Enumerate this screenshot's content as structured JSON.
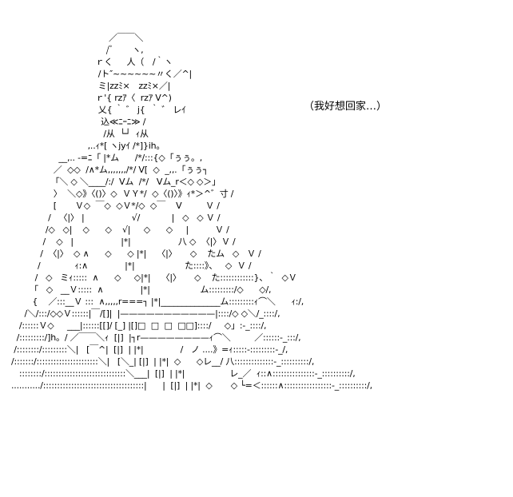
{
  "colors": {
    "background": "#ffffff",
    "ink": "#000000"
  },
  "caption": "（我好想回家…）",
  "art_lines": [
    "                                     ／￣￣＼",
    "                                    /ﾞ       ヽ,",
    "                                ｒく　  人（　/｀ヽ",
    "                                 /ト″~~~~~~〃く／^|",
    "                                 ミ|zzﾐ×　zzﾐ×／|",
    "                                ｒ'{ rzｱ〈  rzｱ V^)",
    "                                 乂{ ｀ ゛ j{  ｀ ゛ レｲ",
    "                                  込≪ﾆｰﾆ≫ /",
    "                                   /从  └┘  ｨ从",
    "                             ,..ｨ*[ ヽjyｲ /*]}ih。",
    "                  __,.. -=ﾆ「 |*ム      /*/:::{◇「ぅぅ。,",
    "                ／  ◇◇  /∧*ム,,,,,,,/*/ Ⅴ[  ◇  _,,.「ぅぅ┐",
    "               「＼ ◇ ＼____/:/  Ⅴム  /*/   Ⅴム_r＜◇ ◇＞」",
    "                〉  ＼◇》〈()〉◇  ＶＹ*/  ◇〈()〉》ｨ*＞^゛寸 /",
    "                [       Ｖ◇  ￣◇  ◇Ｖ*/◇  ◇￣    Ⅴ         Ｖ /",
    "              /   〈|〉 |                  √/            |   ◇   ◇ Ｖ /",
    "             /◇   ◇|    ◇      ◇    √|     ◇      ◇     |          Ｖ /",
    "            /    ◇   |                  |*|                  八 ◇  〈|〉Ｖ /",
    "           /  〈|〉  ◇ ∧      ◇      ◇ |*|    〈|〉     ◇    たム   ◇   Ｖ /",
    "          /             ｨ:∧              |*|                   た::::》、   ◇  Ｖ /",
    "         /   ◇   ミｨ:::::  ∧      ◇     ◇|*|    〈|〉     ◇    た::::::::::::}、｀  ◇Ｖ",
    "       「   ◇   __Ｖ:::::  ∧              |*|                   ム:::::::::/◇      ◇/,",
    "        {    ／:::__Ｖ :::  ∧,,,,,r===┐ |*|______________ム:::::::::ｨ⌒＼      ｨ:/,",
    "     /＼/:::/◇◇Ｖ::::::|￣/[]|  |———————————|::::/◇ ◇＼/_::::/,",
    "   /::::::Ｖ◇     ___|::::::[[]/ [_] |[]□  □  □  □□]::::/     ◇」:-_::::/,",
    "  /:::::::::/]h。/ ／￣￣＼ｨ  [|]  |┐r————————ｨ⌒＼         ／::::::-_:::/,",
    " /::::::::/:::::::::＼|   [￣^|  [|]  | |*|              /   ノ ....》=ｨ:::::-:::::::::-_/,",
    "/:::::::/::::::::::::::::::::::＼|   [＼_| [|]  | |*|  ◇      ◇レ__/ 八::::::::::::::-_::::::::::/,",
    "   ::::::::/:::::::::::::::::::::::::::::＼___|  [|]  | |*|                 レ_／  ｨ::∧:::::::::::::::-_::::::::::/,",
    ".........../::::::::::::::::::::::::::::::::::::|      |  [|]  | |*|  ◇       ◇ └=＜::::::∧:::::::::::::::::-_::::::::::/,"
  ]
}
